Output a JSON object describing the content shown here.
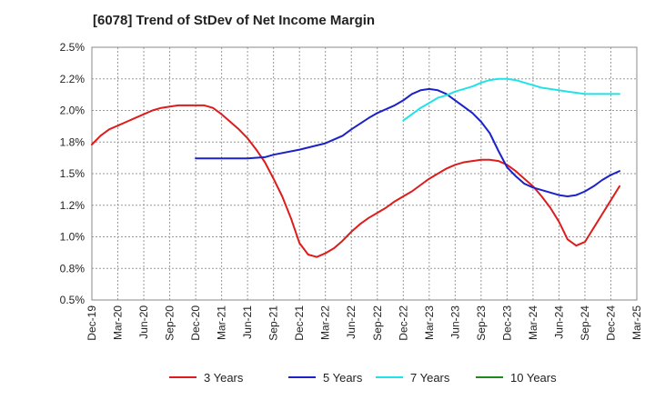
{
  "chart_data": {
    "type": "line",
    "title": "[6078]  Trend of StDev of Net Income Margin",
    "xlabel": "",
    "ylabel": "",
    "x_ticks": [
      "Dec-19",
      "Mar-20",
      "Jun-20",
      "Sep-20",
      "Dec-20",
      "Mar-21",
      "Jun-21",
      "Sep-21",
      "Dec-21",
      "Mar-22",
      "Jun-22",
      "Sep-22",
      "Dec-22",
      "Mar-23",
      "Jun-23",
      "Sep-23",
      "Dec-23",
      "Mar-24",
      "Jun-24",
      "Sep-24",
      "Dec-24",
      "Mar-25"
    ],
    "y_ticks": [
      "0.5%",
      "0.8%",
      "1.0%",
      "1.2%",
      "1.5%",
      "1.8%",
      "2.0%",
      "2.2%",
      "2.5%"
    ],
    "ylim": [
      0.5,
      2.5
    ],
    "y_tick_values": [
      0.5,
      0.75,
      1.0,
      1.25,
      1.5,
      1.75,
      2.0,
      2.25,
      2.5
    ],
    "grid": true,
    "legend_position": "bottom",
    "series": [
      {
        "name": "3 Years",
        "color": "#dd1c1c",
        "points": [
          [
            "Dec-19",
            1.73
          ],
          [
            "Jan-20",
            1.8
          ],
          [
            "Feb-20",
            1.85
          ],
          [
            "Mar-20",
            1.88
          ],
          [
            "Apr-20",
            1.91
          ],
          [
            "May-20",
            1.94
          ],
          [
            "Jun-20",
            1.97
          ],
          [
            "Jul-20",
            2.0
          ],
          [
            "Aug-20",
            2.02
          ],
          [
            "Sep-20",
            2.03
          ],
          [
            "Oct-20",
            2.04
          ],
          [
            "Nov-20",
            2.04
          ],
          [
            "Dec-20",
            2.04
          ],
          [
            "Jan-21",
            2.04
          ],
          [
            "Feb-21",
            2.02
          ],
          [
            "Mar-21",
            1.97
          ],
          [
            "Apr-21",
            1.91
          ],
          [
            "May-21",
            1.85
          ],
          [
            "Jun-21",
            1.78
          ],
          [
            "Jul-21",
            1.69
          ],
          [
            "Aug-21",
            1.59
          ],
          [
            "Sep-21",
            1.46
          ],
          [
            "Oct-21",
            1.32
          ],
          [
            "Nov-21",
            1.15
          ],
          [
            "Dec-21",
            0.95
          ],
          [
            "Jan-22",
            0.86
          ],
          [
            "Feb-22",
            0.84
          ],
          [
            "Mar-22",
            0.87
          ],
          [
            "Apr-22",
            0.91
          ],
          [
            "May-22",
            0.97
          ],
          [
            "Jun-22",
            1.04
          ],
          [
            "Jul-22",
            1.1
          ],
          [
            "Aug-22",
            1.15
          ],
          [
            "Sep-22",
            1.19
          ],
          [
            "Oct-22",
            1.23
          ],
          [
            "Nov-22",
            1.28
          ],
          [
            "Dec-22",
            1.32
          ],
          [
            "Jan-23",
            1.36
          ],
          [
            "Feb-23",
            1.41
          ],
          [
            "Mar-23",
            1.46
          ],
          [
            "Apr-23",
            1.5
          ],
          [
            "May-23",
            1.54
          ],
          [
            "Jun-23",
            1.57
          ],
          [
            "Jul-23",
            1.59
          ],
          [
            "Aug-23",
            1.6
          ],
          [
            "Sep-23",
            1.61
          ],
          [
            "Oct-23",
            1.61
          ],
          [
            "Nov-23",
            1.6
          ],
          [
            "Dec-23",
            1.57
          ],
          [
            "Jan-24",
            1.52
          ],
          [
            "Feb-24",
            1.46
          ],
          [
            "Mar-24",
            1.4
          ],
          [
            "Apr-24",
            1.32
          ],
          [
            "May-24",
            1.23
          ],
          [
            "Jun-24",
            1.12
          ],
          [
            "Jul-24",
            0.98
          ],
          [
            "Aug-24",
            0.93
          ],
          [
            "Sep-24",
            0.96
          ],
          [
            "Oct-24",
            1.07
          ],
          [
            "Nov-24",
            1.18
          ],
          [
            "Dec-24",
            1.29
          ],
          [
            "Jan-25",
            1.4
          ]
        ]
      },
      {
        "name": "5 Years",
        "color": "#1a22c8",
        "points": [
          [
            "Dec-20",
            1.62
          ],
          [
            "Mar-21",
            1.62
          ],
          [
            "Jun-21",
            1.62
          ],
          [
            "Aug-21",
            1.63
          ],
          [
            "Sep-21",
            1.65
          ],
          [
            "Dec-21",
            1.69
          ],
          [
            "Mar-22",
            1.74
          ],
          [
            "May-22",
            1.8
          ],
          [
            "Jun-22",
            1.85
          ],
          [
            "Aug-22",
            1.94
          ],
          [
            "Sep-22",
            1.98
          ],
          [
            "Nov-22",
            2.04
          ],
          [
            "Dec-22",
            2.08
          ],
          [
            "Jan-23",
            2.13
          ],
          [
            "Feb-23",
            2.16
          ],
          [
            "Mar-23",
            2.17
          ],
          [
            "Apr-23",
            2.16
          ],
          [
            "May-23",
            2.13
          ],
          [
            "Jun-23",
            2.08
          ],
          [
            "Aug-23",
            1.98
          ],
          [
            "Sep-23",
            1.91
          ],
          [
            "Oct-23",
            1.82
          ],
          [
            "Nov-23",
            1.68
          ],
          [
            "Dec-23",
            1.55
          ],
          [
            "Jan-24",
            1.48
          ],
          [
            "Feb-24",
            1.42
          ],
          [
            "Mar-24",
            1.39
          ],
          [
            "Jun-24",
            1.33
          ],
          [
            "Jul-24",
            1.32
          ],
          [
            "Aug-24",
            1.33
          ],
          [
            "Sep-24",
            1.36
          ],
          [
            "Oct-24",
            1.4
          ],
          [
            "Nov-24",
            1.45
          ],
          [
            "Dec-24",
            1.49
          ],
          [
            "Jan-25",
            1.52
          ]
        ]
      },
      {
        "name": "7 Years",
        "color": "#1fe3e8",
        "points": [
          [
            "Dec-22",
            1.92
          ],
          [
            "Jan-23",
            1.97
          ],
          [
            "Feb-23",
            2.02
          ],
          [
            "Mar-23",
            2.06
          ],
          [
            "Apr-23",
            2.1
          ],
          [
            "May-23",
            2.12
          ],
          [
            "Jun-23",
            2.15
          ],
          [
            "Jul-23",
            2.17
          ],
          [
            "Aug-23",
            2.19
          ],
          [
            "Sep-23",
            2.22
          ],
          [
            "Oct-23",
            2.24
          ],
          [
            "Nov-23",
            2.25
          ],
          [
            "Dec-23",
            2.25
          ],
          [
            "Jan-24",
            2.24
          ],
          [
            "Feb-24",
            2.22
          ],
          [
            "Mar-24",
            2.2
          ],
          [
            "Apr-24",
            2.18
          ],
          [
            "May-24",
            2.17
          ],
          [
            "Jun-24",
            2.16
          ],
          [
            "Jul-24",
            2.15
          ],
          [
            "Aug-24",
            2.14
          ],
          [
            "Sep-24",
            2.13
          ],
          [
            "Oct-24",
            2.13
          ],
          [
            "Nov-24",
            2.13
          ],
          [
            "Dec-24",
            2.13
          ],
          [
            "Jan-25",
            2.13
          ]
        ]
      },
      {
        "name": "10 Years",
        "color": "#1e8a1e",
        "points": []
      }
    ]
  }
}
